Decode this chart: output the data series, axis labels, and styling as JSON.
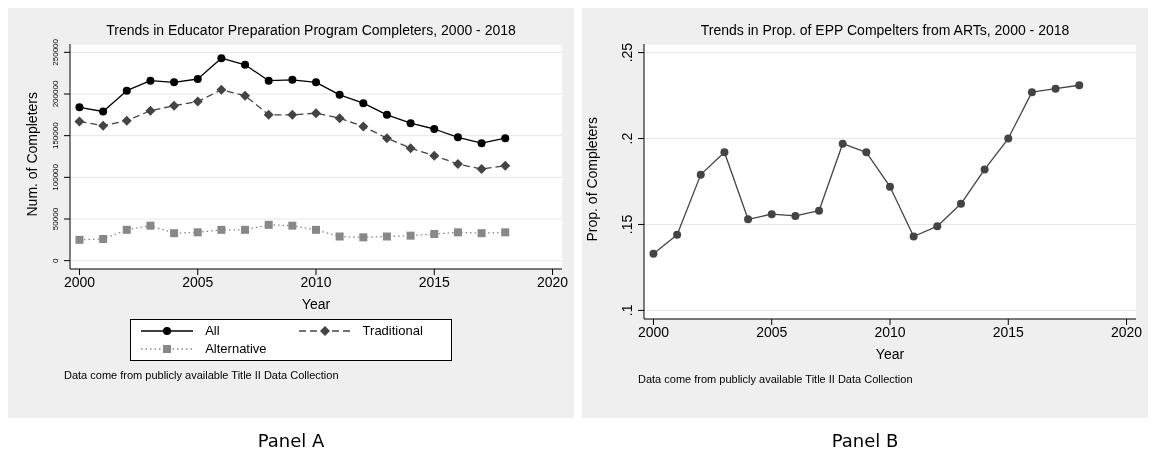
{
  "chart_data": [
    {
      "type": "line",
      "title": "Trends in Educator Preparation Program Completers, 2000 - 2018",
      "xlabel": "Year",
      "ylabel": "Num. of Completers",
      "x": [
        2000,
        2001,
        2002,
        2003,
        2004,
        2005,
        2006,
        2007,
        2008,
        2009,
        2010,
        2011,
        2012,
        2013,
        2014,
        2015,
        2016,
        2017,
        2018
      ],
      "series": [
        {
          "name": "All",
          "color": "#000000",
          "marker": "circle",
          "line_style": "solid",
          "values": [
            184000,
            179000,
            204000,
            216000,
            214000,
            218000,
            243000,
            235000,
            216000,
            217000,
            214000,
            199000,
            189000,
            175000,
            165000,
            158000,
            148000,
            141000,
            147000
          ]
        },
        {
          "name": "Traditional",
          "color": "#444444",
          "marker": "diamond",
          "line_style": "dashed",
          "values": [
            167000,
            162000,
            168000,
            180000,
            186000,
            191000,
            205000,
            198000,
            175000,
            175000,
            177000,
            171000,
            161000,
            147000,
            135000,
            126000,
            116000,
            110000,
            114000
          ]
        },
        {
          "name": "Alternative",
          "color": "#888888",
          "marker": "square",
          "line_style": "dotted",
          "values": [
            25000,
            26000,
            37000,
            42000,
            33000,
            34000,
            37000,
            37000,
            43000,
            42000,
            37000,
            29000,
            28000,
            29000,
            30000,
            32000,
            34000,
            33000,
            34000
          ]
        }
      ],
      "xlim": [
        1999.6,
        2020.4
      ],
      "xticks": [
        2000,
        2005,
        2010,
        2015,
        2020
      ],
      "ylim": [
        -10000,
        260000
      ],
      "yticks": [
        0,
        50000,
        100000,
        150000,
        200000,
        250000
      ],
      "grid": "y",
      "legend": "bottom",
      "annotations": [
        "Data come from publicly available Title II Data Collection",
        "Panel A"
      ]
    },
    {
      "type": "line",
      "title": "Trends in Prop. of EPP Compelters from ARTs, 2000 - 2018",
      "xlabel": "Year",
      "ylabel": "Prop. of Completers",
      "x": [
        2000,
        2001,
        2002,
        2003,
        2004,
        2005,
        2006,
        2007,
        2008,
        2009,
        2010,
        2011,
        2012,
        2013,
        2014,
        2015,
        2016,
        2017,
        2018
      ],
      "series": [
        {
          "color": "#444444",
          "marker": "circle",
          "line_style": "solid",
          "values": [
            0.133,
            0.144,
            0.179,
            0.192,
            0.153,
            0.156,
            0.155,
            0.158,
            0.197,
            0.192,
            0.172,
            0.143,
            0.149,
            0.162,
            0.182,
            0.2,
            0.227,
            0.229,
            0.231
          ]
        }
      ],
      "xlim": [
        1999.6,
        2020.4
      ],
      "xticks": [
        2000,
        2005,
        2010,
        2015,
        2020
      ],
      "ylim": [
        0.095,
        0.255
      ],
      "yticks": [
        {
          "value": 0.1,
          "label": ".1"
        },
        {
          "value": 0.15,
          "label": ".15"
        },
        {
          "value": 0.2,
          "label": ".2"
        },
        {
          "value": 0.25,
          "label": ".25"
        }
      ],
      "grid": "y",
      "annotations": [
        "Data come from publicly available Title II Data Collection",
        "Panel B"
      ]
    }
  ]
}
